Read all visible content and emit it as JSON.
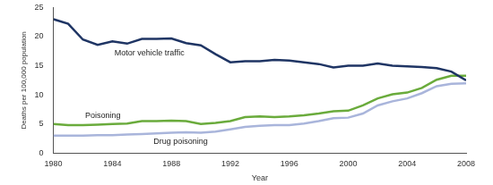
{
  "chart_data": {
    "type": "line",
    "x_label": "Year",
    "y_label": "Deaths per 100,000 population",
    "x": [
      1980,
      1981,
      1982,
      1983,
      1984,
      1985,
      1986,
      1987,
      1988,
      1989,
      1990,
      1991,
      1992,
      1993,
      1994,
      1995,
      1996,
      1997,
      1998,
      1999,
      2000,
      2001,
      2002,
      2003,
      2004,
      2005,
      2006,
      2007,
      2008
    ],
    "series": [
      {
        "name": "Motor vehicle traffic",
        "color": "#1f3564",
        "values": [
          23.0,
          22.2,
          19.5,
          18.6,
          19.2,
          18.8,
          19.6,
          19.6,
          19.7,
          18.9,
          18.5,
          17.0,
          15.6,
          15.8,
          15.8,
          16.0,
          15.9,
          15.6,
          15.3,
          14.7,
          15.0,
          15.0,
          15.4,
          15.0,
          14.9,
          14.8,
          14.6,
          14.0,
          12.5
        ]
      },
      {
        "name": "Poisoning",
        "color": "#6aab3c",
        "values": [
          5.0,
          4.8,
          4.8,
          4.9,
          5.0,
          5.1,
          5.5,
          5.5,
          5.6,
          5.5,
          5.0,
          5.2,
          5.5,
          6.2,
          6.3,
          6.2,
          6.3,
          6.5,
          6.8,
          7.2,
          7.3,
          8.2,
          9.4,
          10.1,
          10.4,
          11.2,
          12.6,
          13.3,
          13.3
        ]
      },
      {
        "name": "Drug poisoning",
        "color": "#a9b5db",
        "values": [
          3.0,
          3.0,
          3.0,
          3.1,
          3.1,
          3.2,
          3.3,
          3.4,
          3.5,
          3.6,
          3.5,
          3.7,
          4.1,
          4.5,
          4.7,
          4.8,
          4.8,
          5.1,
          5.5,
          6.0,
          6.1,
          6.8,
          8.2,
          8.9,
          9.4,
          10.3,
          11.5,
          11.9,
          12.0
        ]
      }
    ],
    "xlim": [
      1980,
      2008
    ],
    "xticks": [
      1980,
      1984,
      1988,
      1992,
      1996,
      2000,
      2004,
      2008
    ],
    "ylim": [
      0,
      25
    ],
    "yticks": [
      0,
      5,
      10,
      15,
      20,
      25
    ],
    "grid": false
  }
}
